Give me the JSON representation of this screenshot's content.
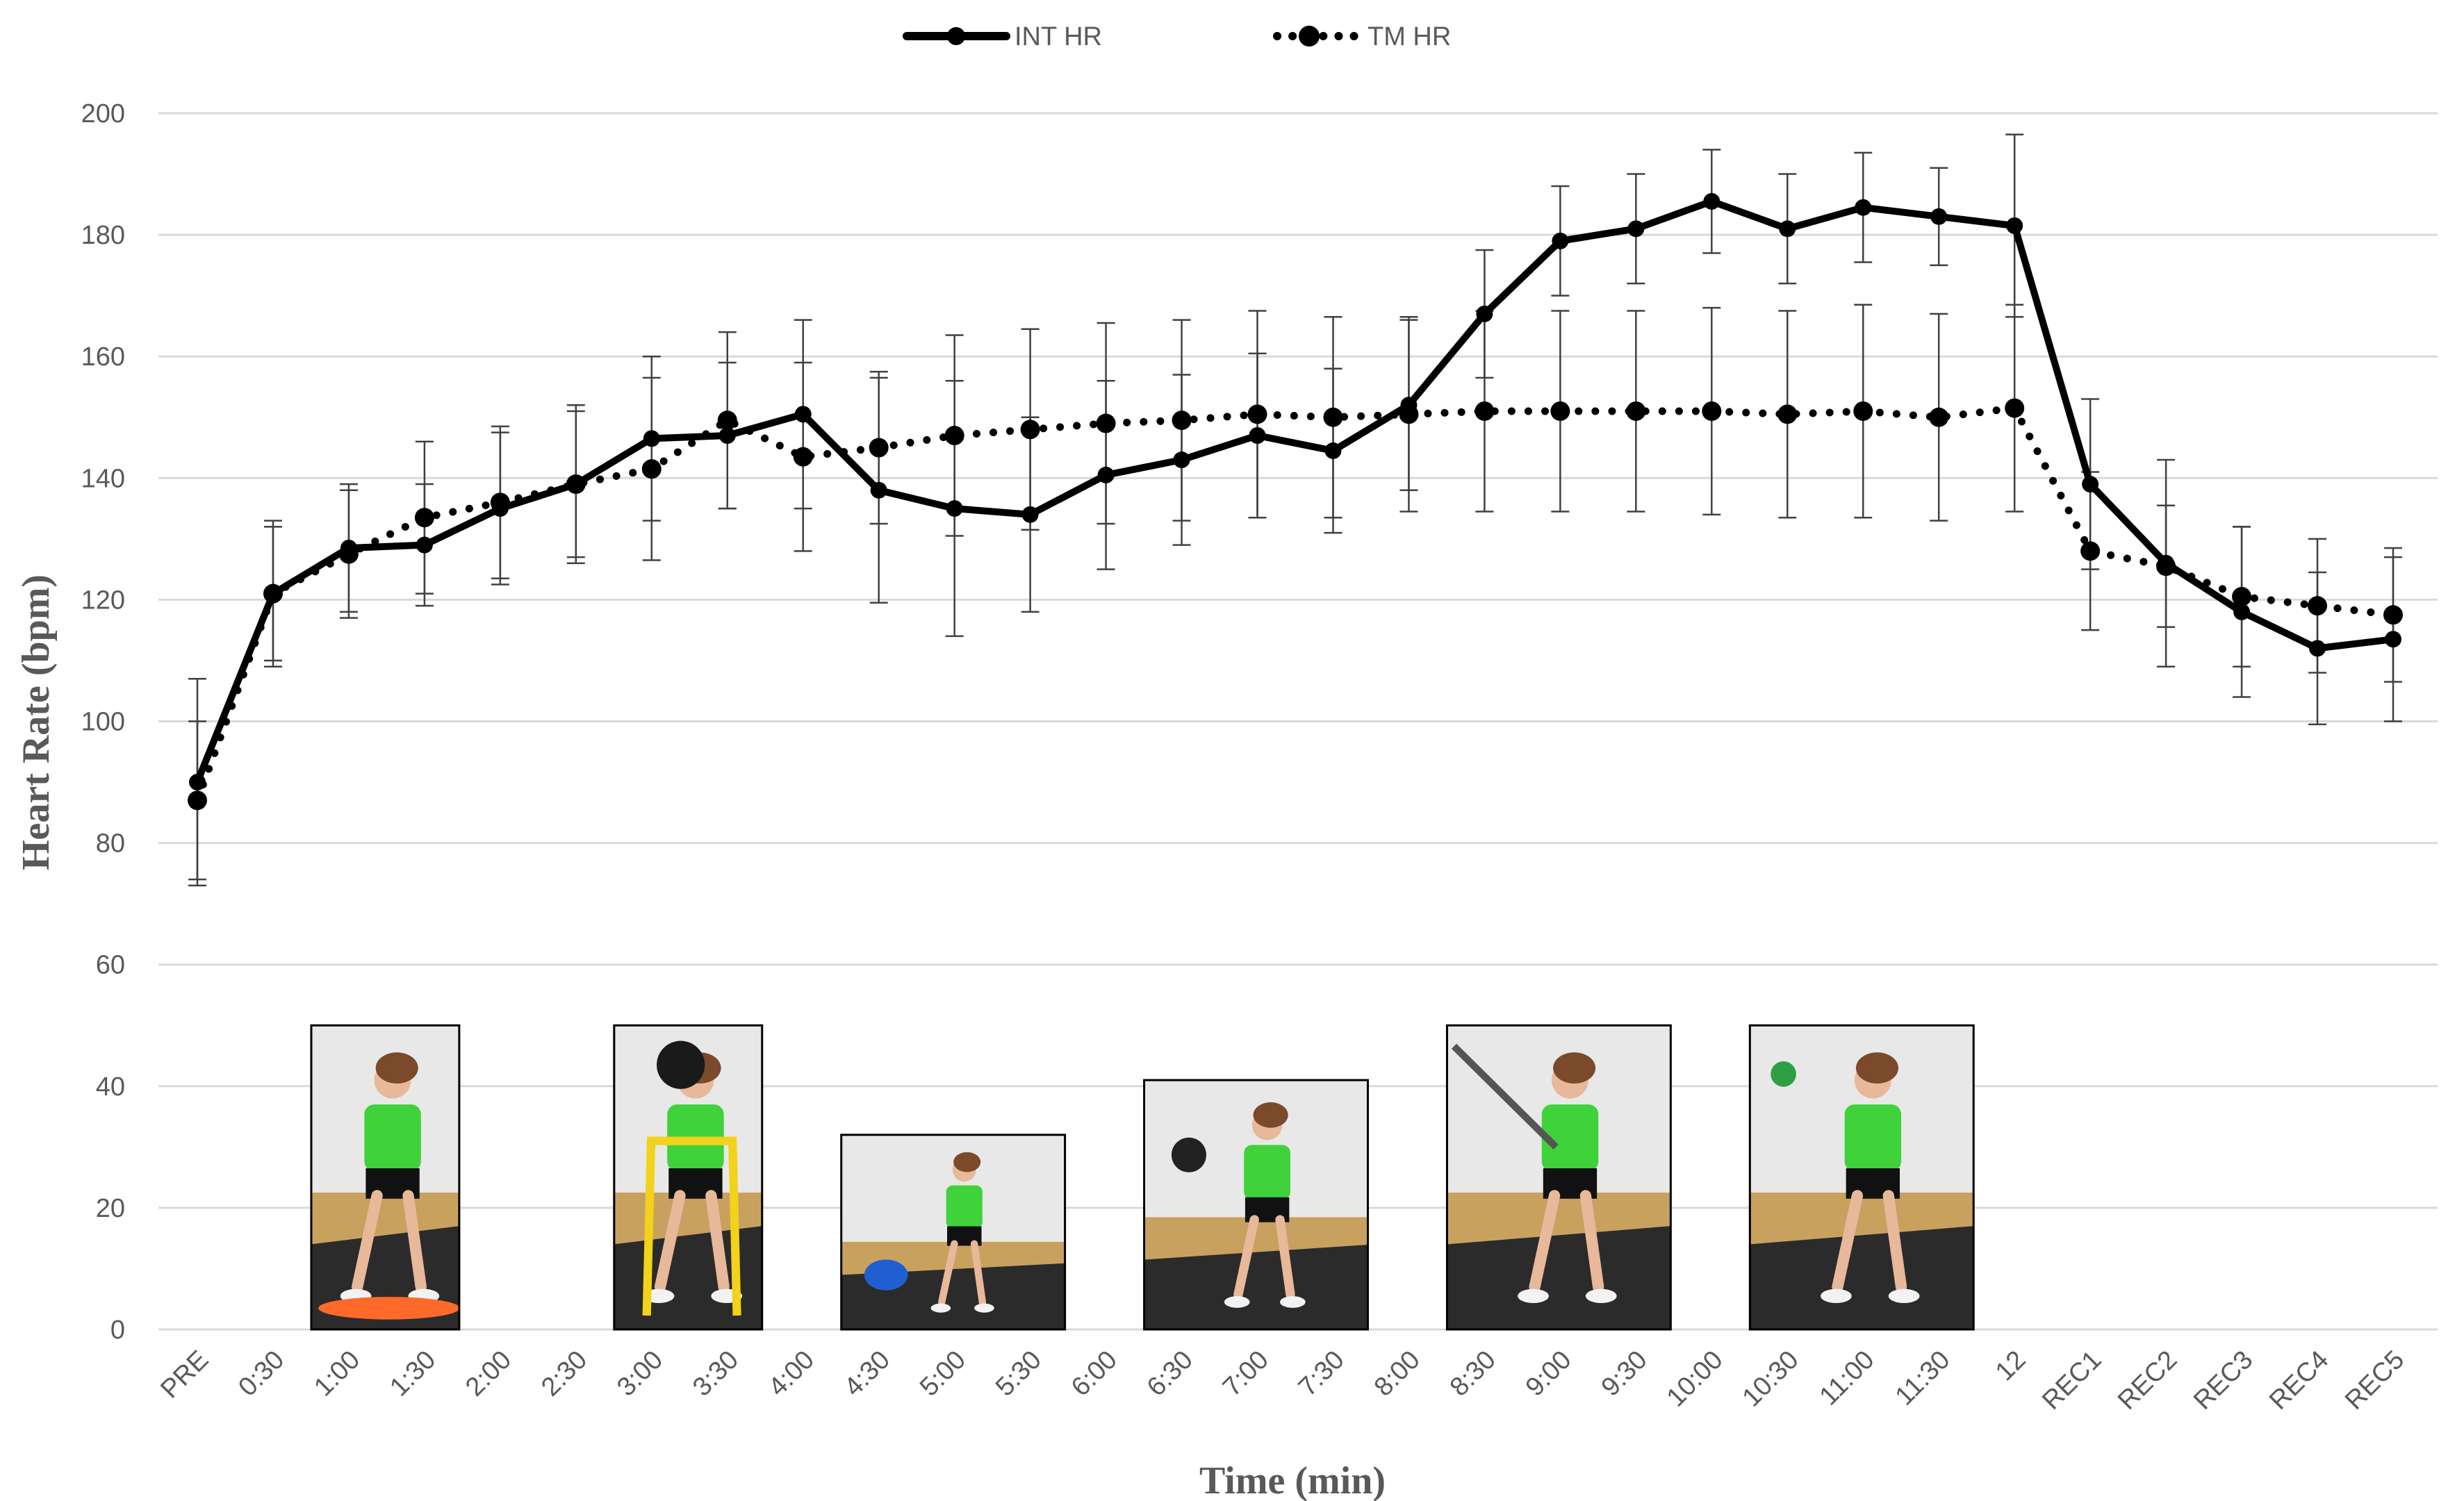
{
  "chart_data": {
    "type": "line",
    "xlabel": "Time (min)",
    "ylabel": "Heart Rate (bpm)",
    "ylim": [
      0,
      200
    ],
    "yticks": [
      0,
      20,
      40,
      60,
      80,
      100,
      120,
      140,
      160,
      180,
      200
    ],
    "grid": "horizontal",
    "legend_position": "top",
    "categories": [
      "PRE",
      "0:30",
      "1:00",
      "1:30",
      "2:00",
      "2:30",
      "3:00",
      "3:30",
      "4:00",
      "4:30",
      "5:00",
      "5:30",
      "6:00",
      "6:30",
      "7:00",
      "7:30",
      "8:00",
      "8:30",
      "9:00",
      "9:30",
      "10:00",
      "10:30",
      "11:00",
      "11:30",
      "12",
      "REC1",
      "REC2",
      "REC3",
      "REC4",
      "REC5"
    ],
    "series": [
      {
        "name": "INT HR",
        "style": "solid",
        "color": "#000000",
        "values": [
          90,
          121,
          128.5,
          129,
          135,
          139,
          146.5,
          147,
          150.5,
          138,
          135,
          134,
          140.5,
          143,
          147,
          144.5,
          152,
          167,
          179,
          181,
          185.5,
          181,
          184.5,
          183,
          181.5,
          139,
          126,
          118,
          112,
          113.5
        ],
        "error": [
          17,
          12,
          10.5,
          10,
          12.5,
          13,
          13.5,
          12,
          15.5,
          18.5,
          21,
          16,
          15.5,
          14,
          13.5,
          13.5,
          14,
          10.5,
          9,
          9,
          8.5,
          9,
          9,
          8,
          15,
          14,
          17,
          14,
          12.5,
          13.5
        ]
      },
      {
        "name": "TM HR",
        "style": "dotted",
        "color": "#000000",
        "values": [
          87,
          121,
          127.5,
          133.5,
          136,
          139,
          141.5,
          149.5,
          143.5,
          145,
          147,
          148,
          149,
          149.5,
          150.5,
          150,
          150.5,
          151,
          151,
          151,
          151,
          150.5,
          151,
          150,
          151.5,
          128,
          125.5,
          120.5,
          119,
          117.5
        ],
        "error": [
          13,
          11,
          10.5,
          12.5,
          12.5,
          12,
          15,
          14.5,
          15.5,
          12.5,
          16.5,
          16.5,
          16.5,
          16.5,
          17,
          16.5,
          16,
          16.5,
          16.5,
          16.5,
          17,
          17,
          17.5,
          17,
          17,
          13,
          10,
          11.5,
          11,
          11
        ]
      }
    ],
    "exercise_photos": [
      {
        "name": "balance-board-squat-photo",
        "from_category": "0:30",
        "to_category": "1:30",
        "top_value": 50
      },
      {
        "name": "hurdle-squat-ball-photo",
        "from_category": "2:30",
        "to_category": "3:30",
        "top_value": 50
      },
      {
        "name": "bosu-plank-photo",
        "from_category": "4:00",
        "to_category": "5:30",
        "top_value": 32
      },
      {
        "name": "medicine-ball-lunge-photo",
        "from_category": "6:00",
        "to_category": "7:30",
        "top_value": 41
      },
      {
        "name": "battle-rope-squat-photo",
        "from_category": "8:00",
        "to_category": "9:30",
        "top_value": 50
      },
      {
        "name": "ball-slam-squat-photo",
        "from_category": "10:00",
        "to_category": "11:30",
        "top_value": 50
      }
    ]
  },
  "colors": {
    "grid": "#d9d9d9",
    "text": "#595959",
    "line": "#000000",
    "photo_wall": "#e8e8e8",
    "photo_floor": "#c9a15f",
    "photo_mat": "#2b2b2b",
    "athlete_shirt": "#3fd23a",
    "athlete_shorts": "#111111",
    "athlete_skin": "#e8b89a"
  }
}
